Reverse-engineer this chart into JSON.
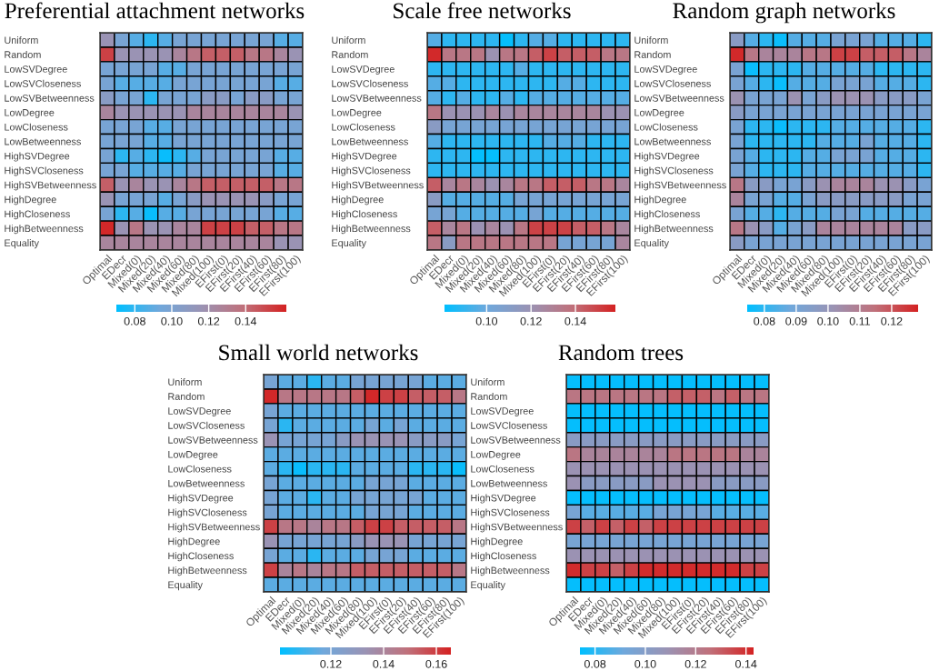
{
  "chart_data": [
    {
      "type": "heatmap",
      "title": "Preferential attachment networks",
      "categories": [
        "Optimal",
        "EDecr",
        "Mixed(0)",
        "Mixed(20)",
        "Mixed(40)",
        "Mixed(60)",
        "Mixed(80)",
        "Mixed(100)",
        "EFirst(0)",
        "EFirst(20)",
        "EFirst(40)",
        "EFirst(60)",
        "EFirst(80)",
        "EFirst(100)"
      ],
      "y_categories": [
        "Uniform",
        "Random",
        "LowSVDegree",
        "LowSVCloseness",
        "LowSVBetweenness",
        "LowDegree",
        "LowCloseness",
        "LowBetweenness",
        "HighSVDegree",
        "HighSVCloseness",
        "HighSVBetweenness",
        "HighDegree",
        "HighCloseness",
        "HighBetweenness",
        "Equality"
      ],
      "cells": [
        [
          0.116,
          0.098,
          0.088,
          0.079,
          0.088,
          0.098,
          0.098,
          0.098,
          0.098,
          0.098,
          0.098,
          0.098,
          0.088,
          0.088
        ],
        [
          0.153,
          0.116,
          0.116,
          0.116,
          0.116,
          0.125,
          0.134,
          0.144,
          0.144,
          0.144,
          0.134,
          0.134,
          0.125,
          0.116
        ],
        [
          0.098,
          0.098,
          0.098,
          0.098,
          0.088,
          0.088,
          0.098,
          0.098,
          0.098,
          0.098,
          0.098,
          0.098,
          0.098,
          0.098
        ],
        [
          0.098,
          0.088,
          0.088,
          0.088,
          0.088,
          0.098,
          0.098,
          0.098,
          0.098,
          0.098,
          0.098,
          0.098,
          0.088,
          0.088
        ],
        [
          0.107,
          0.098,
          0.098,
          0.079,
          0.098,
          0.098,
          0.098,
          0.107,
          0.107,
          0.098,
          0.107,
          0.107,
          0.098,
          0.098
        ],
        [
          0.125,
          0.116,
          0.116,
          0.116,
          0.116,
          0.116,
          0.125,
          0.125,
          0.125,
          0.125,
          0.125,
          0.125,
          0.125,
          0.116
        ],
        [
          0.098,
          0.098,
          0.098,
          0.088,
          0.088,
          0.098,
          0.098,
          0.098,
          0.098,
          0.098,
          0.098,
          0.098,
          0.098,
          0.098
        ],
        [
          0.098,
          0.098,
          0.098,
          0.088,
          0.088,
          0.098,
          0.098,
          0.098,
          0.098,
          0.098,
          0.098,
          0.098,
          0.098,
          0.098
        ],
        [
          0.098,
          0.079,
          0.088,
          0.079,
          0.072,
          0.079,
          0.088,
          0.098,
          0.098,
          0.098,
          0.098,
          0.098,
          0.088,
          0.088
        ],
        [
          0.098,
          0.098,
          0.088,
          0.088,
          0.088,
          0.088,
          0.098,
          0.098,
          0.098,
          0.098,
          0.098,
          0.098,
          0.088,
          0.088
        ],
        [
          0.144,
          0.116,
          0.125,
          0.116,
          0.116,
          0.125,
          0.134,
          0.144,
          0.144,
          0.144,
          0.144,
          0.144,
          0.134,
          0.134
        ],
        [
          0.116,
          0.098,
          0.098,
          0.098,
          0.088,
          0.098,
          0.107,
          0.116,
          0.116,
          0.116,
          0.116,
          0.107,
          0.098,
          0.098
        ],
        [
          0.098,
          0.079,
          0.088,
          0.072,
          0.088,
          0.088,
          0.098,
          0.098,
          0.098,
          0.098,
          0.098,
          0.098,
          0.088,
          0.088
        ],
        [
          0.16,
          0.116,
          0.134,
          0.116,
          0.116,
          0.125,
          0.125,
          0.153,
          0.153,
          0.153,
          0.144,
          0.144,
          0.134,
          0.134
        ],
        [
          0.125,
          0.125,
          0.125,
          0.125,
          0.125,
          0.125,
          0.125,
          0.125,
          0.125,
          0.125,
          0.125,
          0.125,
          0.116,
          0.116
        ]
      ],
      "clim": [
        0.07,
        0.162
      ],
      "cticks": [
        {
          "value": 0.08,
          "label": "0.08"
        },
        {
          "value": 0.1,
          "label": "0.10"
        },
        {
          "value": 0.12,
          "label": "0.12"
        },
        {
          "value": 0.14,
          "label": "0.14"
        }
      ]
    },
    {
      "type": "heatmap",
      "title": "Scale free networks",
      "categories": [
        "Optimal",
        "EDecr",
        "Mixed(0)",
        "Mixed(20)",
        "Mixed(40)",
        "Mixed(60)",
        "Mixed(80)",
        "Mixed(100)",
        "EFirst(0)",
        "EFirst(20)",
        "EFirst(40)",
        "EFirst(60)",
        "EFirst(80)",
        "EFirst(100)"
      ],
      "y_categories": [
        "Uniform",
        "Random",
        "LowSVDegree",
        "LowSVCloseness",
        "LowSVBetweenness",
        "LowDegree",
        "LowCloseness",
        "LowBetweenness",
        "HighSVDegree",
        "HighSVCloseness",
        "HighSVBetweenness",
        "HighDegree",
        "HighCloseness",
        "HighBetweenness",
        "Equality"
      ],
      "cells": [
        [
          0.096,
          0.089,
          0.089,
          0.089,
          0.089,
          0.082,
          0.089,
          0.096,
          0.096,
          0.089,
          0.089,
          0.089,
          0.089,
          0.089
        ],
        [
          0.156,
          0.135,
          0.135,
          0.135,
          0.12,
          0.135,
          0.135,
          0.143,
          0.15,
          0.143,
          0.143,
          0.143,
          0.135,
          0.135
        ],
        [
          0.089,
          0.089,
          0.089,
          0.089,
          0.089,
          0.089,
          0.096,
          0.089,
          0.089,
          0.089,
          0.089,
          0.089,
          0.089,
          0.089
        ],
        [
          0.096,
          0.096,
          0.089,
          0.089,
          0.089,
          0.089,
          0.089,
          0.089,
          0.089,
          0.096,
          0.096,
          0.089,
          0.089,
          0.089
        ],
        [
          0.096,
          0.089,
          0.096,
          0.089,
          0.089,
          0.096,
          0.089,
          0.096,
          0.096,
          0.096,
          0.096,
          0.096,
          0.096,
          0.096
        ],
        [
          0.135,
          0.12,
          0.12,
          0.12,
          0.127,
          0.12,
          0.127,
          0.127,
          0.127,
          0.127,
          0.127,
          0.127,
          0.12,
          0.12
        ],
        [
          0.112,
          0.104,
          0.104,
          0.104,
          0.104,
          0.104,
          0.104,
          0.104,
          0.104,
          0.104,
          0.104,
          0.104,
          0.104,
          0.104
        ],
        [
          0.096,
          0.089,
          0.089,
          0.089,
          0.089,
          0.089,
          0.089,
          0.089,
          0.096,
          0.096,
          0.096,
          0.089,
          0.089,
          0.089
        ],
        [
          0.089,
          0.089,
          0.089,
          0.082,
          0.082,
          0.089,
          0.089,
          0.089,
          0.089,
          0.089,
          0.089,
          0.089,
          0.089,
          0.089
        ],
        [
          0.089,
          0.089,
          0.089,
          0.089,
          0.089,
          0.089,
          0.089,
          0.089,
          0.089,
          0.089,
          0.089,
          0.089,
          0.089,
          0.089
        ],
        [
          0.143,
          0.127,
          0.135,
          0.127,
          0.12,
          0.127,
          0.135,
          0.135,
          0.143,
          0.143,
          0.143,
          0.135,
          0.135,
          0.127
        ],
        [
          0.112,
          0.096,
          0.096,
          0.096,
          0.096,
          0.096,
          0.104,
          0.104,
          0.104,
          0.104,
          0.104,
          0.104,
          0.104,
          0.104
        ],
        [
          0.104,
          0.104,
          0.096,
          0.096,
          0.096,
          0.096,
          0.096,
          0.104,
          0.096,
          0.096,
          0.096,
          0.096,
          0.096,
          0.096
        ],
        [
          0.143,
          0.127,
          0.135,
          0.12,
          0.127,
          0.12,
          0.135,
          0.15,
          0.15,
          0.15,
          0.143,
          0.143,
          0.135,
          0.127
        ],
        [
          0.135,
          0.112,
          0.135,
          0.135,
          0.135,
          0.135,
          0.135,
          0.135,
          0.135,
          0.104,
          0.104,
          0.104,
          0.104,
          0.127
        ]
      ],
      "clim": [
        0.081,
        0.158
      ],
      "cticks": [
        {
          "value": 0.1,
          "label": "0.10"
        },
        {
          "value": 0.12,
          "label": "0.12"
        },
        {
          "value": 0.14,
          "label": "0.14"
        }
      ]
    },
    {
      "type": "heatmap",
      "title": "Random graph networks",
      "categories": [
        "Optimal",
        "EDecr",
        "Mixed(0)",
        "Mixed(20)",
        "Mixed(40)",
        "Mixed(60)",
        "Mixed(80)",
        "Mixed(100)",
        "EFirst(0)",
        "EFirst(20)",
        "EFirst(40)",
        "EFirst(60)",
        "EFirst(80)",
        "EFirst(100)"
      ],
      "y_categories": [
        "Uniform",
        "Random",
        "LowSVDegree",
        "LowSVCloseness",
        "LowSVBetweenness",
        "LowDegree",
        "LowCloseness",
        "LowBetweenness",
        "HighSVDegree",
        "HighSVCloseness",
        "HighSVBetweenness",
        "HighDegree",
        "HighCloseness",
        "HighBetweenness",
        "Equality"
      ],
      "cells": [
        [
          0.096,
          0.085,
          0.08,
          0.076,
          0.085,
          0.085,
          0.085,
          0.091,
          0.091,
          0.091,
          0.085,
          0.085,
          0.085,
          0.08
        ],
        [
          0.127,
          0.112,
          0.107,
          0.107,
          0.107,
          0.112,
          0.112,
          0.123,
          0.123,
          0.118,
          0.118,
          0.118,
          0.112,
          0.107
        ],
        [
          0.091,
          0.076,
          0.08,
          0.08,
          0.08,
          0.085,
          0.085,
          0.085,
          0.085,
          0.085,
          0.08,
          0.08,
          0.08,
          0.08
        ],
        [
          0.091,
          0.085,
          0.08,
          0.076,
          0.085,
          0.085,
          0.085,
          0.091,
          0.091,
          0.091,
          0.085,
          0.085,
          0.085,
          0.08
        ],
        [
          0.102,
          0.091,
          0.091,
          0.091,
          0.102,
          0.091,
          0.096,
          0.102,
          0.102,
          0.102,
          0.096,
          0.096,
          0.096,
          0.091
        ],
        [
          0.096,
          0.091,
          0.091,
          0.091,
          0.091,
          0.091,
          0.091,
          0.091,
          0.091,
          0.091,
          0.091,
          0.091,
          0.091,
          0.091
        ],
        [
          0.091,
          0.08,
          0.08,
          0.076,
          0.08,
          0.08,
          0.08,
          0.085,
          0.085,
          0.085,
          0.085,
          0.085,
          0.085,
          0.08
        ],
        [
          0.091,
          0.08,
          0.08,
          0.08,
          0.08,
          0.08,
          0.085,
          0.085,
          0.085,
          0.091,
          0.085,
          0.085,
          0.085,
          0.08
        ],
        [
          0.091,
          0.085,
          0.08,
          0.08,
          0.08,
          0.085,
          0.085,
          0.091,
          0.091,
          0.091,
          0.085,
          0.085,
          0.085,
          0.08
        ],
        [
          0.091,
          0.085,
          0.08,
          0.08,
          0.08,
          0.085,
          0.085,
          0.085,
          0.085,
          0.085,
          0.085,
          0.085,
          0.085,
          0.08
        ],
        [
          0.112,
          0.096,
          0.096,
          0.091,
          0.091,
          0.096,
          0.102,
          0.107,
          0.107,
          0.107,
          0.102,
          0.102,
          0.096,
          0.091
        ],
        [
          0.107,
          0.091,
          0.091,
          0.085,
          0.085,
          0.091,
          0.096,
          0.096,
          0.096,
          0.096,
          0.096,
          0.096,
          0.091,
          0.091
        ],
        [
          0.091,
          0.085,
          0.085,
          0.08,
          0.085,
          0.085,
          0.085,
          0.091,
          0.091,
          0.085,
          0.085,
          0.085,
          0.085,
          0.085
        ],
        [
          0.112,
          0.102,
          0.096,
          0.085,
          0.091,
          0.096,
          0.107,
          0.107,
          0.107,
          0.107,
          0.107,
          0.107,
          0.096,
          0.096
        ],
        [
          0.096,
          0.091,
          0.091,
          0.091,
          0.091,
          0.091,
          0.091,
          0.091,
          0.091,
          0.091,
          0.091,
          0.091,
          0.091,
          0.091
        ]
      ],
      "clim": [
        0.0746,
        0.1283
      ],
      "cticks": [
        {
          "value": 0.08,
          "label": "0.08"
        },
        {
          "value": 0.09,
          "label": "0.09"
        },
        {
          "value": 0.1,
          "label": "0.10"
        },
        {
          "value": 0.11,
          "label": "0.11"
        },
        {
          "value": 0.12,
          "label": "0.12"
        }
      ]
    },
    {
      "type": "heatmap",
      "title": "Small world networks",
      "categories": [
        "Optimal",
        "EDecr",
        "Mixed(0)",
        "Mixed(20)",
        "Mixed(40)",
        "Mixed(60)",
        "Mixed(80)",
        "Mixed(100)",
        "EFirst(0)",
        "EFirst(20)",
        "EFirst(40)",
        "EFirst(60)",
        "EFirst(80)",
        "EFirst(100)"
      ],
      "y_categories": [
        "Uniform",
        "Random",
        "LowSVDegree",
        "LowSVCloseness",
        "LowSVBetweenness",
        "LowDegree",
        "LowCloseness",
        "LowBetweenness",
        "HighSVDegree",
        "HighSVCloseness",
        "HighSVBetweenness",
        "HighDegree",
        "HighCloseness",
        "HighBetweenness",
        "Equality"
      ],
      "cells": [
        [
          0.12,
          0.114,
          0.114,
          0.107,
          0.114,
          0.114,
          0.12,
          0.12,
          0.12,
          0.12,
          0.12,
          0.114,
          0.114,
          0.114
        ],
        [
          0.164,
          0.146,
          0.146,
          0.146,
          0.146,
          0.146,
          0.153,
          0.164,
          0.159,
          0.159,
          0.153,
          0.153,
          0.153,
          0.146
        ],
        [
          0.12,
          0.114,
          0.114,
          0.114,
          0.114,
          0.114,
          0.114,
          0.114,
          0.114,
          0.114,
          0.114,
          0.114,
          0.114,
          0.114
        ],
        [
          0.12,
          0.107,
          0.114,
          0.114,
          0.114,
          0.114,
          0.114,
          0.12,
          0.114,
          0.12,
          0.114,
          0.114,
          0.114,
          0.114
        ],
        [
          0.133,
          0.12,
          0.12,
          0.12,
          0.12,
          0.127,
          0.133,
          0.133,
          0.133,
          0.133,
          0.127,
          0.127,
          0.127,
          0.12
        ],
        [
          0.114,
          0.114,
          0.114,
          0.114,
          0.114,
          0.114,
          0.114,
          0.114,
          0.114,
          0.114,
          0.114,
          0.114,
          0.114,
          0.114
        ],
        [
          0.114,
          0.107,
          0.102,
          0.107,
          0.107,
          0.107,
          0.114,
          0.114,
          0.114,
          0.114,
          0.107,
          0.107,
          0.107,
          0.102
        ],
        [
          0.12,
          0.114,
          0.114,
          0.114,
          0.114,
          0.114,
          0.114,
          0.12,
          0.12,
          0.12,
          0.114,
          0.114,
          0.114,
          0.114
        ],
        [
          0.12,
          0.114,
          0.114,
          0.107,
          0.114,
          0.114,
          0.12,
          0.12,
          0.12,
          0.12,
          0.12,
          0.114,
          0.114,
          0.114
        ],
        [
          0.12,
          0.114,
          0.114,
          0.114,
          0.114,
          0.114,
          0.114,
          0.12,
          0.12,
          0.12,
          0.114,
          0.114,
          0.114,
          0.114
        ],
        [
          0.159,
          0.146,
          0.146,
          0.14,
          0.146,
          0.146,
          0.153,
          0.159,
          0.159,
          0.153,
          0.153,
          0.153,
          0.153,
          0.146
        ],
        [
          0.133,
          0.12,
          0.12,
          0.12,
          0.12,
          0.12,
          0.127,
          0.133,
          0.133,
          0.133,
          0.12,
          0.12,
          0.12,
          0.12
        ],
        [
          0.12,
          0.114,
          0.114,
          0.107,
          0.114,
          0.114,
          0.114,
          0.12,
          0.12,
          0.12,
          0.114,
          0.114,
          0.114,
          0.114
        ],
        [
          0.159,
          0.14,
          0.146,
          0.14,
          0.146,
          0.146,
          0.153,
          0.153,
          0.153,
          0.153,
          0.153,
          0.153,
          0.153,
          0.146
        ],
        [
          0.114,
          0.114,
          0.114,
          0.114,
          0.114,
          0.114,
          0.114,
          0.114,
          0.114,
          0.114,
          0.114,
          0.114,
          0.114,
          0.114
        ]
      ],
      "clim": [
        0.1007,
        0.1655
      ],
      "cticks": [
        {
          "value": 0.12,
          "label": "0.12"
        },
        {
          "value": 0.14,
          "label": "0.14"
        },
        {
          "value": 0.16,
          "label": "0.16"
        }
      ]
    },
    {
      "type": "heatmap",
      "title": "Random trees",
      "categories": [
        "Optimal",
        "EDecr",
        "Mixed(0)",
        "Mixed(20)",
        "Mixed(40)",
        "Mixed(60)",
        "Mixed(80)",
        "Mixed(100)",
        "EFirst(0)",
        "EFirst(20)",
        "EFirst(40)",
        "EFirst(60)",
        "EFirst(80)",
        "EFirst(100)"
      ],
      "y_categories": [
        "Uniform",
        "Random",
        "LowSVDegree",
        "LowSVCloseness",
        "LowSVBetweenness",
        "LowDegree",
        "LowCloseness",
        "LowBetweenness",
        "HighSVDegree",
        "HighSVCloseness",
        "HighSVBetweenness",
        "HighDegree",
        "HighCloseness",
        "HighBetweenness",
        "Equality"
      ],
      "cells": [
        [
          0.075,
          0.075,
          0.075,
          0.075,
          0.075,
          0.075,
          0.075,
          0.075,
          0.075,
          0.075,
          0.075,
          0.075,
          0.075,
          0.075
        ],
        [
          0.123,
          0.123,
          0.123,
          0.123,
          0.123,
          0.123,
          0.123,
          0.129,
          0.129,
          0.129,
          0.123,
          0.129,
          0.123,
          0.123
        ],
        [
          0.075,
          0.075,
          0.075,
          0.075,
          0.075,
          0.075,
          0.075,
          0.075,
          0.075,
          0.075,
          0.075,
          0.075,
          0.075,
          0.075
        ],
        [
          0.075,
          0.075,
          0.075,
          0.075,
          0.075,
          0.075,
          0.075,
          0.075,
          0.075,
          0.075,
          0.075,
          0.075,
          0.075,
          0.075
        ],
        [
          0.102,
          0.102,
          0.102,
          0.102,
          0.102,
          0.102,
          0.102,
          0.102,
          0.102,
          0.102,
          0.102,
          0.102,
          0.102,
          0.102
        ],
        [
          0.123,
          0.116,
          0.116,
          0.116,
          0.116,
          0.116,
          0.116,
          0.123,
          0.123,
          0.123,
          0.123,
          0.123,
          0.116,
          0.116
        ],
        [
          0.109,
          0.109,
          0.109,
          0.109,
          0.109,
          0.109,
          0.109,
          0.109,
          0.109,
          0.109,
          0.109,
          0.109,
          0.109,
          0.109
        ],
        [
          0.109,
          0.102,
          0.102,
          0.102,
          0.102,
          0.102,
          0.109,
          0.109,
          0.109,
          0.109,
          0.102,
          0.102,
          0.102,
          0.102
        ],
        [
          0.075,
          0.075,
          0.075,
          0.075,
          0.075,
          0.075,
          0.075,
          0.075,
          0.075,
          0.075,
          0.075,
          0.075,
          0.075,
          0.075
        ],
        [
          0.095,
          0.088,
          0.088,
          0.088,
          0.088,
          0.088,
          0.095,
          0.095,
          0.095,
          0.095,
          0.088,
          0.088,
          0.088,
          0.088
        ],
        [
          0.136,
          0.129,
          0.136,
          0.129,
          0.136,
          0.129,
          0.136,
          0.136,
          0.136,
          0.136,
          0.136,
          0.136,
          0.136,
          0.136
        ],
        [
          0.095,
          0.095,
          0.095,
          0.095,
          0.095,
          0.095,
          0.095,
          0.095,
          0.095,
          0.095,
          0.095,
          0.095,
          0.095,
          0.095
        ],
        [
          0.109,
          0.109,
          0.109,
          0.109,
          0.109,
          0.109,
          0.109,
          0.109,
          0.109,
          0.109,
          0.109,
          0.109,
          0.109,
          0.109
        ],
        [
          0.141,
          0.136,
          0.136,
          0.129,
          0.136,
          0.141,
          0.141,
          0.141,
          0.141,
          0.141,
          0.141,
          0.141,
          0.136,
          0.136
        ],
        [
          0.075,
          0.075,
          0.075,
          0.075,
          0.075,
          0.075,
          0.075,
          0.075,
          0.075,
          0.075,
          0.075,
          0.075,
          0.075,
          0.075
        ]
      ],
      "clim": [
        0.074,
        0.143
      ],
      "cticks": [
        {
          "value": 0.08,
          "label": "0.08"
        },
        {
          "value": 0.1,
          "label": "0.10"
        },
        {
          "value": 0.12,
          "label": "0.12"
        },
        {
          "value": 0.14,
          "label": "0.14"
        }
      ]
    }
  ]
}
